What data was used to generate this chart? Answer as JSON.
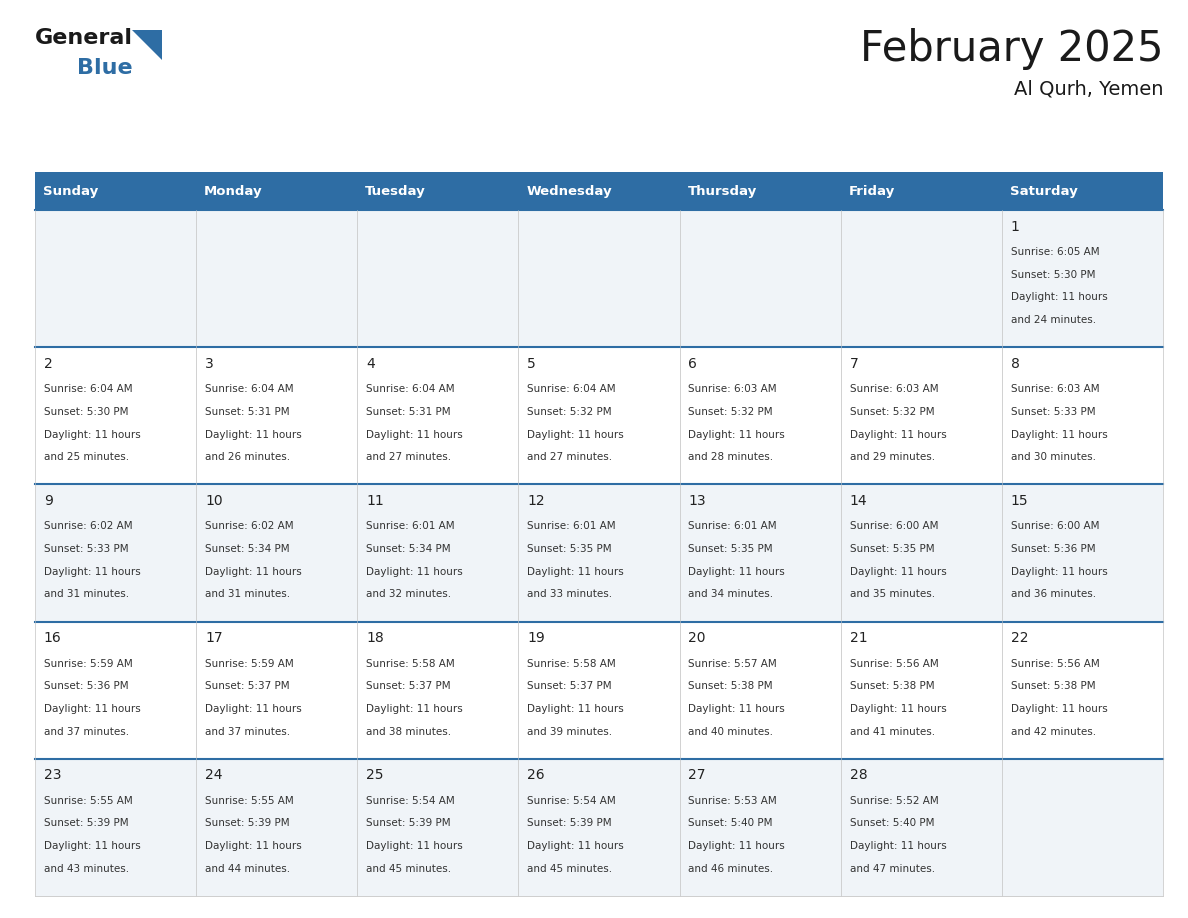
{
  "title": "February 2025",
  "subtitle": "Al Qurh, Yemen",
  "header_color": "#2E6DA4",
  "header_text_color": "#FFFFFF",
  "cell_bg_even": "#F0F4F8",
  "cell_bg_odd": "#FFFFFF",
  "border_color": "#2E6DA4",
  "grid_color": "#CCCCCC",
  "day_headers": [
    "Sunday",
    "Monday",
    "Tuesday",
    "Wednesday",
    "Thursday",
    "Friday",
    "Saturday"
  ],
  "days": [
    {
      "day": 1,
      "col": 6,
      "row": 0,
      "sunrise": "6:05 AM",
      "sunset": "5:30 PM",
      "daylight_line1": "Daylight: 11 hours",
      "daylight_line2": "and 24 minutes."
    },
    {
      "day": 2,
      "col": 0,
      "row": 1,
      "sunrise": "6:04 AM",
      "sunset": "5:30 PM",
      "daylight_line1": "Daylight: 11 hours",
      "daylight_line2": "and 25 minutes."
    },
    {
      "day": 3,
      "col": 1,
      "row": 1,
      "sunrise": "6:04 AM",
      "sunset": "5:31 PM",
      "daylight_line1": "Daylight: 11 hours",
      "daylight_line2": "and 26 minutes."
    },
    {
      "day": 4,
      "col": 2,
      "row": 1,
      "sunrise": "6:04 AM",
      "sunset": "5:31 PM",
      "daylight_line1": "Daylight: 11 hours",
      "daylight_line2": "and 27 minutes."
    },
    {
      "day": 5,
      "col": 3,
      "row": 1,
      "sunrise": "6:04 AM",
      "sunset": "5:32 PM",
      "daylight_line1": "Daylight: 11 hours",
      "daylight_line2": "and 27 minutes."
    },
    {
      "day": 6,
      "col": 4,
      "row": 1,
      "sunrise": "6:03 AM",
      "sunset": "5:32 PM",
      "daylight_line1": "Daylight: 11 hours",
      "daylight_line2": "and 28 minutes."
    },
    {
      "day": 7,
      "col": 5,
      "row": 1,
      "sunrise": "6:03 AM",
      "sunset": "5:32 PM",
      "daylight_line1": "Daylight: 11 hours",
      "daylight_line2": "and 29 minutes."
    },
    {
      "day": 8,
      "col": 6,
      "row": 1,
      "sunrise": "6:03 AM",
      "sunset": "5:33 PM",
      "daylight_line1": "Daylight: 11 hours",
      "daylight_line2": "and 30 minutes."
    },
    {
      "day": 9,
      "col": 0,
      "row": 2,
      "sunrise": "6:02 AM",
      "sunset": "5:33 PM",
      "daylight_line1": "Daylight: 11 hours",
      "daylight_line2": "and 31 minutes."
    },
    {
      "day": 10,
      "col": 1,
      "row": 2,
      "sunrise": "6:02 AM",
      "sunset": "5:34 PM",
      "daylight_line1": "Daylight: 11 hours",
      "daylight_line2": "and 31 minutes."
    },
    {
      "day": 11,
      "col": 2,
      "row": 2,
      "sunrise": "6:01 AM",
      "sunset": "5:34 PM",
      "daylight_line1": "Daylight: 11 hours",
      "daylight_line2": "and 32 minutes."
    },
    {
      "day": 12,
      "col": 3,
      "row": 2,
      "sunrise": "6:01 AM",
      "sunset": "5:35 PM",
      "daylight_line1": "Daylight: 11 hours",
      "daylight_line2": "and 33 minutes."
    },
    {
      "day": 13,
      "col": 4,
      "row": 2,
      "sunrise": "6:01 AM",
      "sunset": "5:35 PM",
      "daylight_line1": "Daylight: 11 hours",
      "daylight_line2": "and 34 minutes."
    },
    {
      "day": 14,
      "col": 5,
      "row": 2,
      "sunrise": "6:00 AM",
      "sunset": "5:35 PM",
      "daylight_line1": "Daylight: 11 hours",
      "daylight_line2": "and 35 minutes."
    },
    {
      "day": 15,
      "col": 6,
      "row": 2,
      "sunrise": "6:00 AM",
      "sunset": "5:36 PM",
      "daylight_line1": "Daylight: 11 hours",
      "daylight_line2": "and 36 minutes."
    },
    {
      "day": 16,
      "col": 0,
      "row": 3,
      "sunrise": "5:59 AM",
      "sunset": "5:36 PM",
      "daylight_line1": "Daylight: 11 hours",
      "daylight_line2": "and 37 minutes."
    },
    {
      "day": 17,
      "col": 1,
      "row": 3,
      "sunrise": "5:59 AM",
      "sunset": "5:37 PM",
      "daylight_line1": "Daylight: 11 hours",
      "daylight_line2": "and 37 minutes."
    },
    {
      "day": 18,
      "col": 2,
      "row": 3,
      "sunrise": "5:58 AM",
      "sunset": "5:37 PM",
      "daylight_line1": "Daylight: 11 hours",
      "daylight_line2": "and 38 minutes."
    },
    {
      "day": 19,
      "col": 3,
      "row": 3,
      "sunrise": "5:58 AM",
      "sunset": "5:37 PM",
      "daylight_line1": "Daylight: 11 hours",
      "daylight_line2": "and 39 minutes."
    },
    {
      "day": 20,
      "col": 4,
      "row": 3,
      "sunrise": "5:57 AM",
      "sunset": "5:38 PM",
      "daylight_line1": "Daylight: 11 hours",
      "daylight_line2": "and 40 minutes."
    },
    {
      "day": 21,
      "col": 5,
      "row": 3,
      "sunrise": "5:56 AM",
      "sunset": "5:38 PM",
      "daylight_line1": "Daylight: 11 hours",
      "daylight_line2": "and 41 minutes."
    },
    {
      "day": 22,
      "col": 6,
      "row": 3,
      "sunrise": "5:56 AM",
      "sunset": "5:38 PM",
      "daylight_line1": "Daylight: 11 hours",
      "daylight_line2": "and 42 minutes."
    },
    {
      "day": 23,
      "col": 0,
      "row": 4,
      "sunrise": "5:55 AM",
      "sunset": "5:39 PM",
      "daylight_line1": "Daylight: 11 hours",
      "daylight_line2": "and 43 minutes."
    },
    {
      "day": 24,
      "col": 1,
      "row": 4,
      "sunrise": "5:55 AM",
      "sunset": "5:39 PM",
      "daylight_line1": "Daylight: 11 hours",
      "daylight_line2": "and 44 minutes."
    },
    {
      "day": 25,
      "col": 2,
      "row": 4,
      "sunrise": "5:54 AM",
      "sunset": "5:39 PM",
      "daylight_line1": "Daylight: 11 hours",
      "daylight_line2": "and 45 minutes."
    },
    {
      "day": 26,
      "col": 3,
      "row": 4,
      "sunrise": "5:54 AM",
      "sunset": "5:39 PM",
      "daylight_line1": "Daylight: 11 hours",
      "daylight_line2": "and 45 minutes."
    },
    {
      "day": 27,
      "col": 4,
      "row": 4,
      "sunrise": "5:53 AM",
      "sunset": "5:40 PM",
      "daylight_line1": "Daylight: 11 hours",
      "daylight_line2": "and 46 minutes."
    },
    {
      "day": 28,
      "col": 5,
      "row": 4,
      "sunrise": "5:52 AM",
      "sunset": "5:40 PM",
      "daylight_line1": "Daylight: 11 hours",
      "daylight_line2": "and 47 minutes."
    }
  ],
  "num_rows": 5,
  "num_cols": 7,
  "fig_width": 11.88,
  "fig_height": 9.18,
  "dpi": 100
}
